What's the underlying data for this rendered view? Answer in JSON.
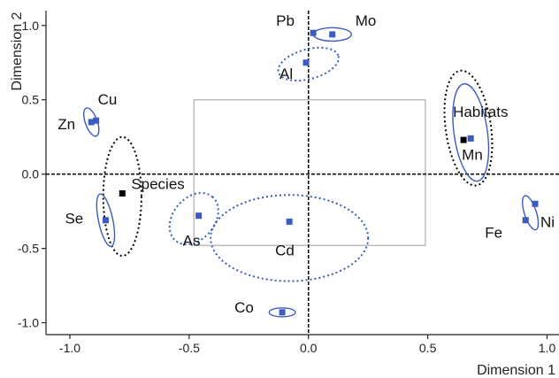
{
  "chart_data": {
    "type": "scatter",
    "xlabel": "Dimension 1",
    "ylabel": "Dimension 2",
    "xlim": [
      -1.1,
      1.05
    ],
    "ylim": [
      -1.08,
      1.1
    ],
    "xticks": [
      -1.0,
      -0.5,
      0.0,
      0.5,
      1.0
    ],
    "yticks": [
      -1.0,
      -0.5,
      0.0,
      0.5,
      1.0
    ],
    "xtick_labels": [
      "-1.0",
      "-0.5",
      "0.0",
      "0.5",
      "1.0"
    ],
    "ytick_labels": [
      "-1.0",
      "-0.5",
      "0.0",
      "0.5",
      "1.0"
    ],
    "reference_lines": {
      "x": 0,
      "y": 0,
      "style": "dashed"
    },
    "inner_box": {
      "x": [
        -0.48,
        0.49
      ],
      "y": [
        -0.48,
        0.5
      ]
    },
    "colors": {
      "element": "#3b5bbf",
      "supplementary": "#000000",
      "box": "#b5b5b5"
    },
    "points": [
      {
        "label": "Pb",
        "x": 0.02,
        "y": 0.95,
        "kind": "element",
        "ellipse": null
      },
      {
        "label": "Mo",
        "x": 0.1,
        "y": 0.94,
        "kind": "element",
        "ellipse": {
          "rx": 0.08,
          "ry": 0.045,
          "angle": 0,
          "style": "solid"
        }
      },
      {
        "label": "Al",
        "x": -0.01,
        "y": 0.75,
        "kind": "element",
        "ellipse": {
          "rx": 0.13,
          "ry": 0.1,
          "angle": 15,
          "style": "dotted",
          "dx": 0.01,
          "dy": -0.01
        }
      },
      {
        "label": "Cu",
        "x": -0.89,
        "y": 0.36,
        "kind": "element",
        "ellipse": null
      },
      {
        "label": "Zn",
        "x": -0.91,
        "y": 0.35,
        "kind": "element",
        "ellipse": {
          "rx": 0.025,
          "ry": 0.1,
          "angle": 20,
          "style": "solid"
        }
      },
      {
        "label": "Species",
        "x": -0.78,
        "y": -0.13,
        "kind": "supplementary",
        "ellipse": {
          "rx": 0.08,
          "ry": 0.4,
          "angle": 0,
          "style": "dotted",
          "dy": -0.02
        }
      },
      {
        "label": "Se",
        "x": -0.85,
        "y": -0.31,
        "kind": "element",
        "ellipse": {
          "rx": 0.03,
          "ry": 0.18,
          "angle": 12,
          "style": "solid"
        }
      },
      {
        "label": "As",
        "x": -0.46,
        "y": -0.28,
        "kind": "element",
        "ellipse": {
          "rx": 0.12,
          "ry": 0.14,
          "angle": 50,
          "style": "dotted",
          "dx": -0.02,
          "dy": -0.02
        }
      },
      {
        "label": "Cd",
        "x": -0.08,
        "y": -0.32,
        "kind": "element",
        "ellipse": {
          "rx": 0.33,
          "ry": 0.29,
          "angle": 0,
          "style": "dotted",
          "dx": 0.0,
          "dy": -0.11
        }
      },
      {
        "label": "Habitats",
        "x": 0.65,
        "y": 0.23,
        "kind": "supplementary",
        "ellipse": {
          "rx": 0.095,
          "ry": 0.39,
          "angle": 8,
          "style": "dotted",
          "dx": 0.02,
          "dy": 0.08
        }
      },
      {
        "label": "Mn",
        "x": 0.68,
        "y": 0.24,
        "kind": "element",
        "ellipse": {
          "rx": 0.07,
          "ry": 0.33,
          "angle": 8,
          "style": "solid",
          "dx": 0.0,
          "dy": 0.04
        }
      },
      {
        "label": "Ni",
        "x": 0.95,
        "y": -0.2,
        "kind": "element",
        "ellipse": null
      },
      {
        "label": "Fe",
        "x": 0.91,
        "y": -0.31,
        "kind": "element",
        "ellipse": {
          "rx": 0.025,
          "ry": 0.12,
          "angle": 18,
          "style": "solid",
          "dx": 0.02,
          "dy": 0.05
        }
      },
      {
        "label": "Co",
        "x": -0.11,
        "y": -0.93,
        "kind": "element",
        "ellipse": {
          "rx": 0.055,
          "ry": 0.03,
          "angle": 0,
          "style": "solid"
        }
      }
    ]
  }
}
